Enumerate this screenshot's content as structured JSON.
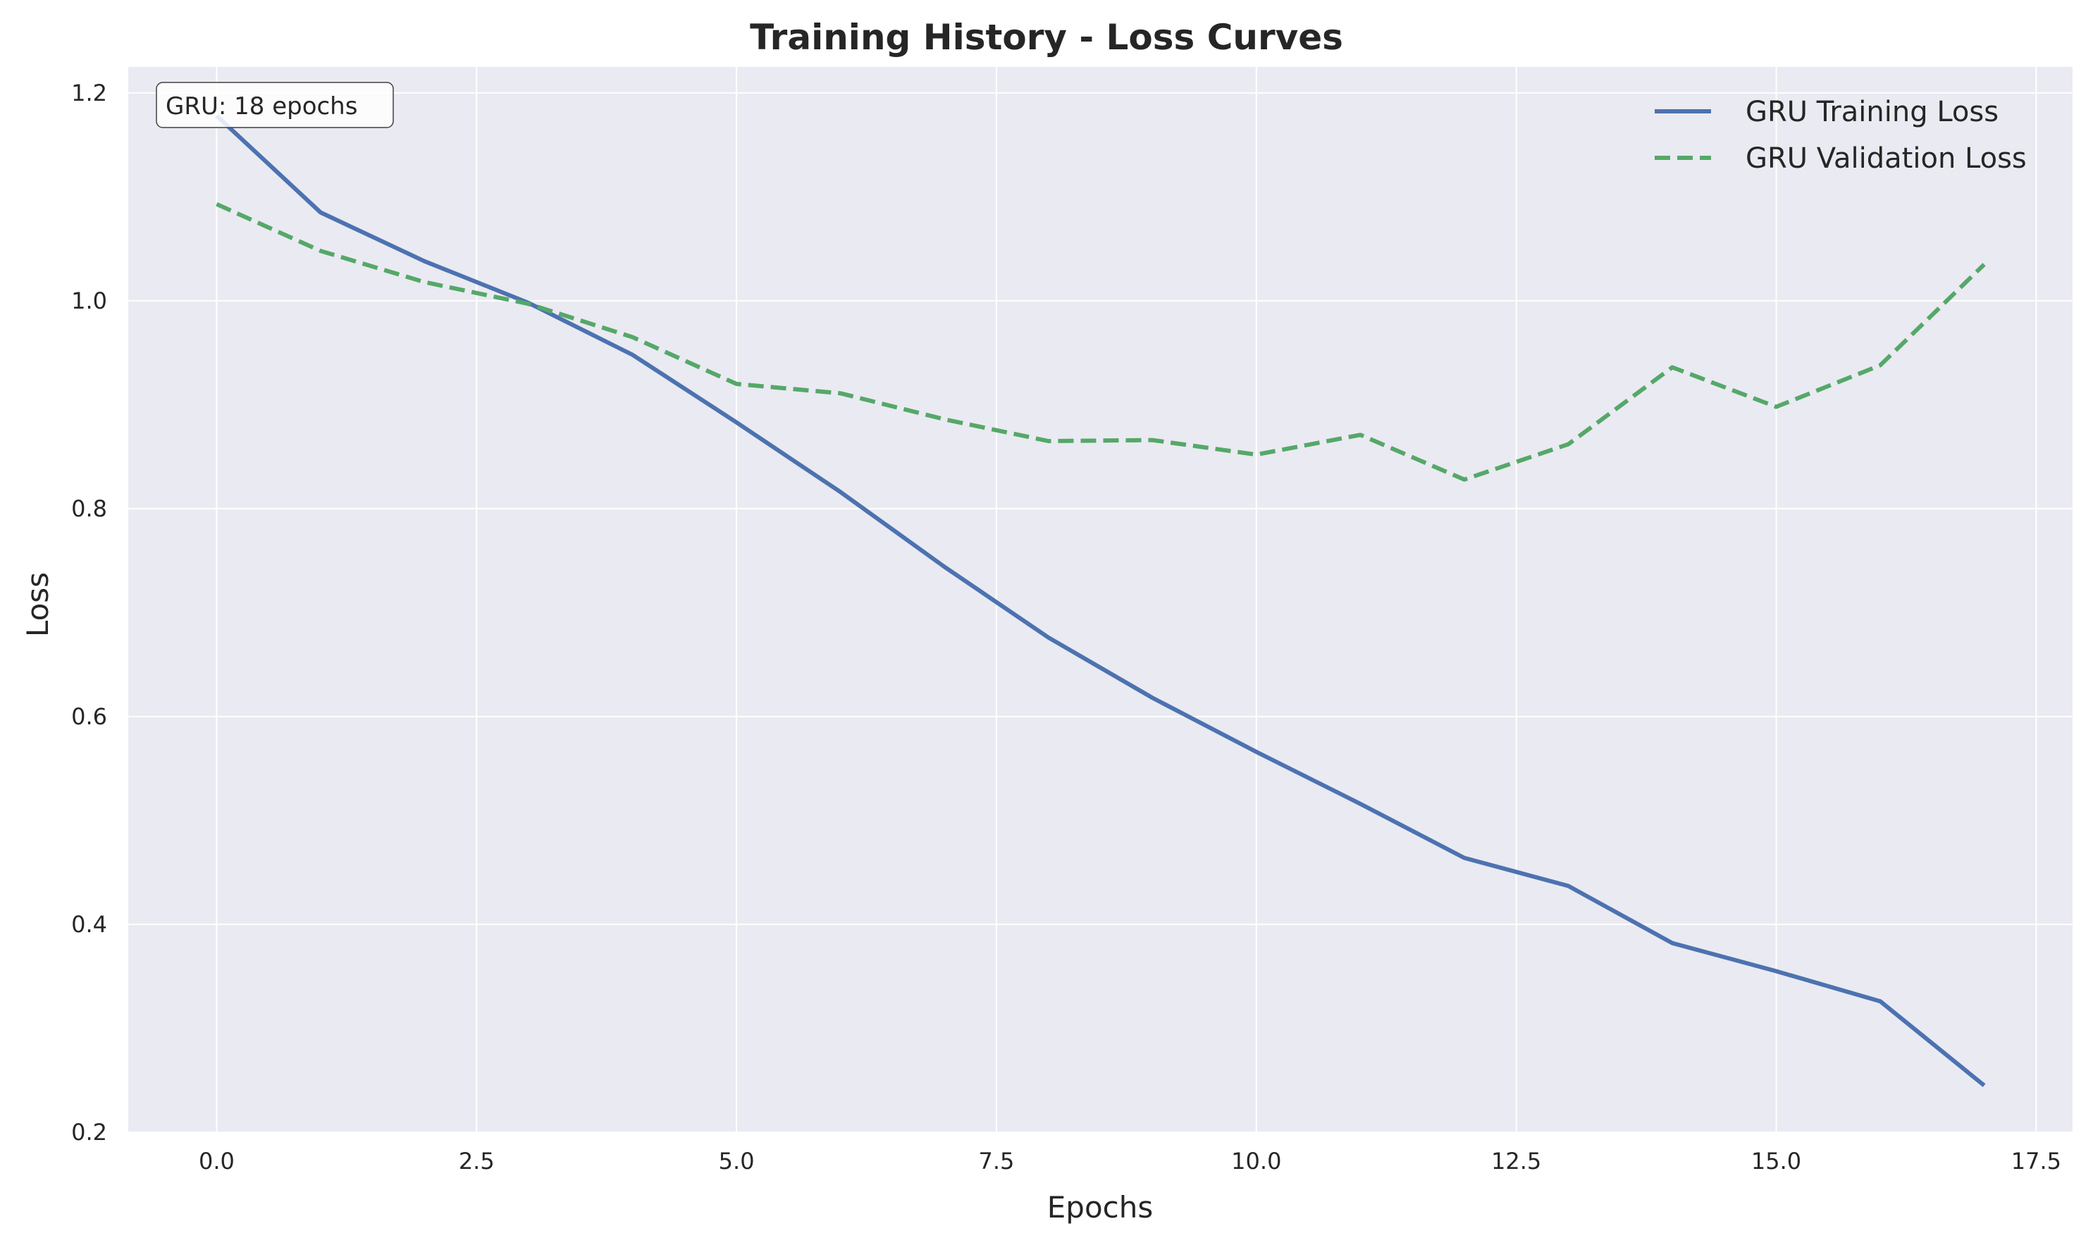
{
  "chart_data": {
    "type": "line",
    "title": "Training History - Loss Curves",
    "xlabel": "Epochs",
    "ylabel": "Loss",
    "xlim": [
      -0.85,
      17.85
    ],
    "ylim": [
      0.2,
      1.225
    ],
    "xticks": [
      0,
      2.5,
      5,
      7.5,
      10,
      12.5,
      15,
      17.5
    ],
    "xtick_labels": [
      "0.0",
      "2.5",
      "5.0",
      "7.5",
      "10.0",
      "12.5",
      "15.0",
      "17.5"
    ],
    "yticks": [
      0.2,
      0.4,
      0.6,
      0.8,
      1.0,
      1.2
    ],
    "ytick_labels": [
      "0.2",
      "0.4",
      "0.6",
      "0.8",
      "1.0",
      "1.2"
    ],
    "grid": true,
    "legend_position": "top-right",
    "annotation": "GRU: 18 epochs",
    "x": [
      0,
      1,
      2,
      3,
      4,
      5,
      6,
      7,
      8,
      9,
      10,
      11,
      12,
      13,
      14,
      15,
      16,
      17
    ],
    "series": [
      {
        "name": "GRU Training Loss",
        "color": "#4c72b0",
        "style": "solid",
        "values": [
          1.178,
          1.085,
          1.038,
          0.998,
          0.948,
          0.883,
          0.816,
          0.744,
          0.676,
          0.618,
          0.566,
          0.516,
          0.464,
          0.437,
          0.382,
          0.355,
          0.326,
          0.245
        ]
      },
      {
        "name": "GRU Validation Loss",
        "color": "#55a868",
        "style": "dashed",
        "values": [
          1.093,
          1.048,
          1.018,
          0.997,
          0.965,
          0.92,
          0.911,
          0.886,
          0.865,
          0.866,
          0.852,
          0.871,
          0.828,
          0.862,
          0.936,
          0.898,
          0.938,
          1.035
        ]
      }
    ]
  }
}
